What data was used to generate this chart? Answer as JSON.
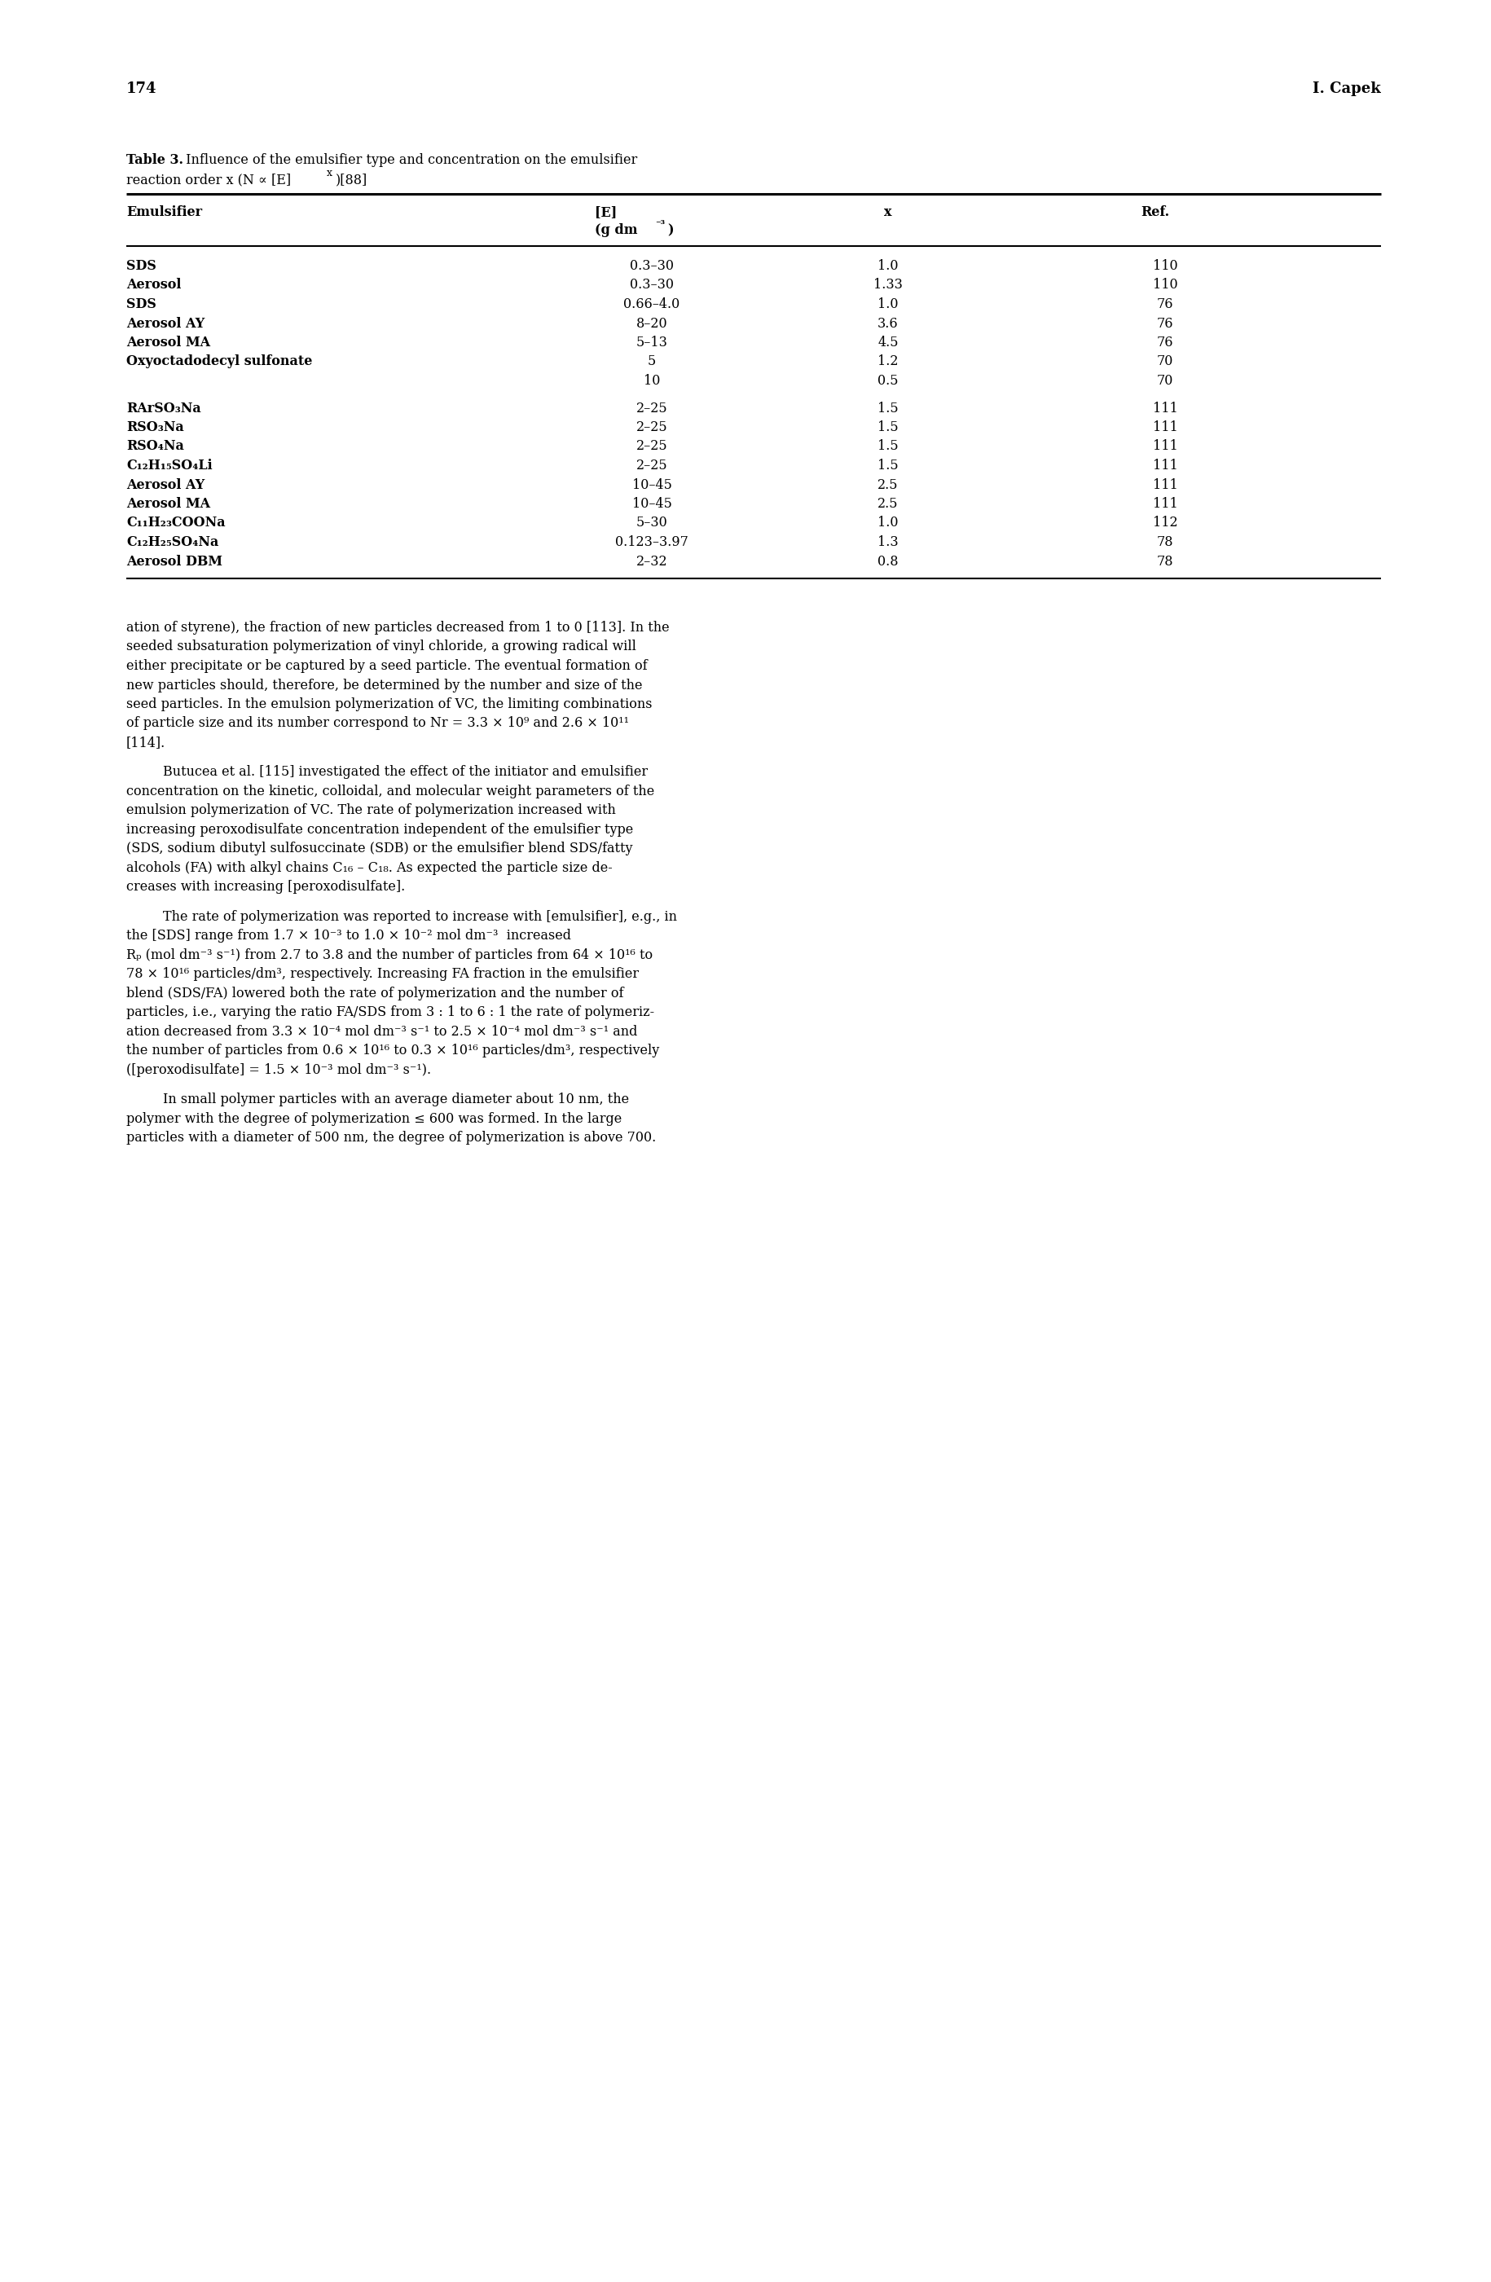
{
  "page_number": "174",
  "page_header_right": "I. Capek",
  "background_color": "#ffffff",
  "text_color": "#000000",
  "table_data": [
    [
      "SDS",
      "0.3–30",
      "1.0",
      "110"
    ],
    [
      "Aerosol",
      "0.3–30",
      "1.33",
      "110"
    ],
    [
      "SDS",
      "0.66–4.0",
      "1.0",
      "76"
    ],
    [
      "Aerosol AY",
      "8–20",
      "3.6",
      "76"
    ],
    [
      "Aerosol MA",
      "5–13",
      "4.5",
      "76"
    ],
    [
      "Oxyoctadodecyl sulfonate",
      "5",
      "1.2",
      "70"
    ],
    [
      "",
      "10",
      "0.5",
      "70"
    ],
    [
      "RArSO₃Na",
      "2–25",
      "1.5",
      "111"
    ],
    [
      "RSO₃Na",
      "2–25",
      "1.5",
      "111"
    ],
    [
      "RSO₄Na",
      "2–25",
      "1.5",
      "111"
    ],
    [
      "C₁₂H₁₅SO₄Li",
      "2–25",
      "1.5",
      "111"
    ],
    [
      "Aerosol AY",
      "10–45",
      "2.5",
      "111"
    ],
    [
      "Aerosol MA",
      "10–45",
      "2.5",
      "111"
    ],
    [
      "C₁₁H₂₃COONa",
      "5–30",
      "1.0",
      "112"
    ],
    [
      "C₁₂H₂₅SO₄Na",
      "0.123–3.97",
      "1.3",
      "78"
    ],
    [
      "Aerosol DBM",
      "2–32",
      "0.8",
      "78"
    ]
  ],
  "body_paragraphs": [
    {
      "indent": false,
      "lines": [
        "ation of styrene), the fraction of new particles decreased from 1 to 0 [113]. In the",
        "seeded subsaturation polymerization of vinyl chloride, a growing radical will",
        "either precipitate or be captured by a seed particle. The eventual formation of",
        "new particles should, therefore, be determined by the number and size of the",
        "seed particles. In the emulsion polymerization of VC, the limiting combinations",
        "of particle size and its number correspond to Nr = 3.3 × 10⁹ and 2.6 × 10¹¹",
        "[114]."
      ]
    },
    {
      "indent": true,
      "lines": [
        "Butucea et al. [115] investigated the effect of the initiator and emulsifier",
        "concentration on the kinetic, colloidal, and molecular weight parameters of the",
        "emulsion polymerization of VC. The rate of polymerization increased with",
        "increasing peroxodisulfate concentration independent of the emulsifier type",
        "(SDS, sodium dibutyl sulfosuccinate (SDB) or the emulsifier blend SDS/fatty",
        "alcohols (FA) with alkyl chains C₁₆ – C₁₈. As expected the particle size de-",
        "creases with increasing [peroxodisulfate]."
      ]
    },
    {
      "indent": true,
      "lines": [
        "The rate of polymerization was reported to increase with [emulsifier], e.g., in",
        "the [SDS] range from 1.7 × 10⁻³ to 1.0 × 10⁻² mol dm⁻³  increased",
        "Rₚ (mol dm⁻³ s⁻¹) from 2.7 to 3.8 and the number of particles from 64 × 10¹⁶ to",
        "78 × 10¹⁶ particles/dm³, respectively. Increasing FA fraction in the emulsifier",
        "blend (SDS/FA) lowered both the rate of polymerization and the number of",
        "particles, i.e., varying the ratio FA/SDS from 3 : 1 to 6 : 1 the rate of polymeriz-",
        "ation decreased from 3.3 × 10⁻⁴ mol dm⁻³ s⁻¹ to 2.5 × 10⁻⁴ mol dm⁻³ s⁻¹ and",
        "the number of particles from 0.6 × 10¹⁶ to 0.3 × 10¹⁶ particles/dm³, respectively",
        "([peroxodisulfate] = 1.5 × 10⁻³ mol dm⁻³ s⁻¹)."
      ]
    },
    {
      "indent": true,
      "lines": [
        "In small polymer particles with an average diameter about 10 nm, the",
        "polymer with the degree of polymerization ≤ 600 was formed. In the large",
        "particles with a diameter of 500 nm, the degree of polymerization is above 700."
      ]
    }
  ]
}
